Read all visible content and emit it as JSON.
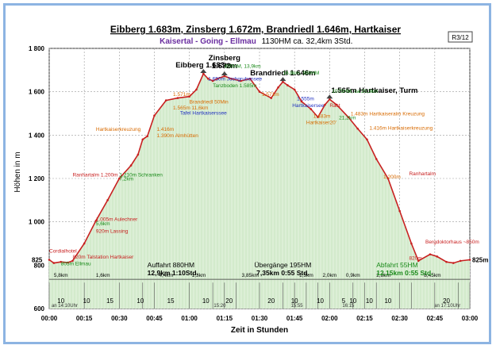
{
  "header": {
    "title": "Eibberg 1.683m, Zinsberg 1.672m, Brandriedl 1.646m, Hartkaiser",
    "subtitle_route": "Kaisertal - Going - Ellmau",
    "subtitle_stats": "1130HM    ca. 32,4km    3Std.",
    "page_label": "R3/12"
  },
  "colors": {
    "profile": "#c82020",
    "fill": "#dcefd6",
    "title_route": "#6a2ea0",
    "label_orange": "#d86a00",
    "label_blue": "#2030c0",
    "label_red": "#c82020",
    "label_green": "#1a8a1a",
    "grid": "#9a9a9a"
  },
  "chart_data": {
    "type": "area",
    "xlabel": "Zeit in Stunden",
    "ylabel": "Höhen in m",
    "xlim": [
      0,
      180
    ],
    "ylim": [
      600,
      1800
    ],
    "y_ticks": [
      600,
      800,
      1000,
      1200,
      1400,
      1600,
      1800
    ],
    "y_tick_labels": [
      "600",
      "800",
      "1 000",
      "1 200",
      "1 400",
      "1 600",
      "1 800"
    ],
    "x_ticks": [
      0,
      15,
      30,
      45,
      60,
      75,
      90,
      105,
      120,
      135,
      150,
      165,
      180
    ],
    "x_tick_labels": [
      "00:00",
      "00:15",
      "00:30",
      "00:45",
      "01:00",
      "01:15",
      "01:30",
      "01:45",
      "02:00",
      "02:15",
      "02:30",
      "02:45",
      "03:00"
    ],
    "extra_y_labels": [
      {
        "value": 825,
        "text": "825"
      }
    ],
    "right_end_label": "825m",
    "series": [
      {
        "name": "profile",
        "points": [
          [
            0,
            825
          ],
          [
            2,
            810
          ],
          [
            5,
            815
          ],
          [
            8,
            812
          ],
          [
            10,
            820
          ],
          [
            15,
            900
          ],
          [
            20,
            1005
          ],
          [
            25,
            1100
          ],
          [
            30,
            1200
          ],
          [
            35,
            1260
          ],
          [
            38,
            1310
          ],
          [
            40,
            1380
          ],
          [
            42,
            1395
          ],
          [
            45,
            1490
          ],
          [
            50,
            1560
          ],
          [
            55,
            1571
          ],
          [
            60,
            1578
          ],
          [
            63,
            1610
          ],
          [
            66,
            1683
          ],
          [
            68,
            1660
          ],
          [
            70,
            1650
          ],
          [
            72,
            1660
          ],
          [
            75,
            1672
          ],
          [
            78,
            1660
          ],
          [
            82,
            1650
          ],
          [
            86,
            1660
          ],
          [
            90,
            1600
          ],
          [
            95,
            1571
          ],
          [
            98,
            1620
          ],
          [
            100,
            1646
          ],
          [
            102,
            1630
          ],
          [
            105,
            1610
          ],
          [
            108,
            1555
          ],
          [
            112,
            1520
          ],
          [
            115,
            1483
          ],
          [
            118,
            1540
          ],
          [
            120,
            1565
          ],
          [
            123,
            1540
          ],
          [
            128,
            1483
          ],
          [
            132,
            1430
          ],
          [
            136,
            1380
          ],
          [
            140,
            1290
          ],
          [
            145,
            1200
          ],
          [
            150,
            1050
          ],
          [
            155,
            900
          ],
          [
            158,
            820
          ],
          [
            163,
            850
          ],
          [
            166,
            840
          ],
          [
            170,
            815
          ],
          [
            173,
            810
          ],
          [
            176,
            820
          ],
          [
            180,
            825
          ]
        ]
      }
    ],
    "interval_ticks": [
      0,
      15,
      30,
      40,
      45,
      60,
      70,
      75,
      80,
      90,
      100,
      105,
      110,
      115,
      120,
      130,
      135,
      140,
      150,
      155,
      165,
      175,
      180
    ],
    "interval_numbers": [
      {
        "x": 5,
        "text": "10"
      },
      {
        "x": 16,
        "text": "10"
      },
      {
        "x": 26,
        "text": "15"
      },
      {
        "x": 39,
        "text": "10"
      },
      {
        "x": 52,
        "text": "15"
      },
      {
        "x": 67,
        "text": "10"
      },
      {
        "x": 77,
        "text": "20"
      },
      {
        "x": 95,
        "text": "20"
      },
      {
        "x": 105,
        "text": "10"
      },
      {
        "x": 116,
        "text": "10"
      },
      {
        "x": 126,
        "text": "5"
      },
      {
        "x": 130,
        "text": "10"
      },
      {
        "x": 137,
        "text": "10"
      },
      {
        "x": 145,
        "text": "10"
      },
      {
        "x": 170,
        "text": "20"
      }
    ],
    "distances": [
      {
        "x": 5,
        "text": "5,8km"
      },
      {
        "x": 23,
        "text": "1,6km"
      },
      {
        "x": 50,
        "text": "4,4km"
      },
      {
        "x": 64,
        "text": "1,3km"
      },
      {
        "x": 86,
        "text": "3,85km"
      },
      {
        "x": 110,
        "text": "1,5km"
      },
      {
        "x": 120,
        "text": "2,0km"
      },
      {
        "x": 130,
        "text": "0,9km"
      },
      {
        "x": 143,
        "text": "2,8km"
      },
      {
        "x": 164,
        "text": "8,45km"
      }
    ],
    "time_marks": [
      {
        "x": 1,
        "text": "an 14:10Uhr"
      },
      {
        "x": 73,
        "text": "15:20"
      },
      {
        "x": 106,
        "text": "15:55"
      },
      {
        "x": 128,
        "text": "16:15"
      },
      {
        "x": 176,
        "text": "an 17:10Uhr"
      }
    ],
    "peaks": [
      {
        "x": 66,
        "y": 1683,
        "label": "Eibberg 1.683m"
      },
      {
        "x": 75,
        "y": 1672,
        "label": "Zinsberg",
        "label2": "1.672m"
      },
      {
        "x": 100,
        "y": 1646,
        "label": "Brandriedl 1.646m"
      },
      {
        "x": 120,
        "y": 1565,
        "label": "1.565m Hartkaiser, Turm"
      }
    ],
    "annotations": [
      {
        "x": 0,
        "y": 858,
        "text": "Cordialhotel",
        "color": "label_red"
      },
      {
        "x": 10,
        "y": 830,
        "text": "820m",
        "color": "label_red",
        "sub": " Talstation Hartkaiser"
      },
      {
        "x": 5,
        "y": 800,
        "text": "805m Ellmau",
        "color": "label_green"
      },
      {
        "x": 20,
        "y": 1005,
        "text": "1.005m Aulechner",
        "color": "label_red"
      },
      {
        "x": 20,
        "y": 985,
        "text": "5,6km",
        "color": "label_green"
      },
      {
        "x": 20,
        "y": 950,
        "text": "920m Lassing",
        "color": "label_red"
      },
      {
        "x": 30,
        "y": 1210,
        "text": "1.210m Schranken",
        "color": "label_green"
      },
      {
        "x": 30,
        "y": 1190,
        "text": "7,2km",
        "color": "label_green"
      },
      {
        "x": 10,
        "y": 1210,
        "text": "Ranhartalm 1.200m",
        "color": "label_red"
      },
      {
        "x": 20,
        "y": 1420,
        "text": "Hartkaiserkreuzung",
        "color": "label_orange"
      },
      {
        "x": 46,
        "y": 1420,
        "text": "1.416m",
        "color": "label_orange"
      },
      {
        "x": 46,
        "y": 1390,
        "text": "1.390m Almhütten",
        "color": "label_orange"
      },
      {
        "x": 53,
        "y": 1580,
        "text": "1.571m",
        "color": "label_orange"
      },
      {
        "x": 53,
        "y": 1518,
        "text": "1.565m",
        "color": "label_orange",
        "sub": " 11,6km"
      },
      {
        "x": 56,
        "y": 1495,
        "text": "Tafel Hartkaiserssee",
        "color": "label_blue"
      },
      {
        "x": 60,
        "y": 1545,
        "text": "Brandriedl 50Min",
        "color": "label_orange"
      },
      {
        "x": 68,
        "y": 1652,
        "text": "1.650m Jochgrubensee",
        "color": "label_blue"
      },
      {
        "x": 75,
        "y": 1710,
        "text": "800HM, 13,9km",
        "color": "label_green"
      },
      {
        "x": 70,
        "y": 1620,
        "text": "Tanzboden 1.585m",
        "color": "label_green"
      },
      {
        "x": 91,
        "y": 1580,
        "text": "1.571m",
        "color": "label_orange"
      },
      {
        "x": 100,
        "y": 1680,
        "text": "16,8km, 990HM",
        "color": "label_green"
      },
      {
        "x": 106,
        "y": 1560,
        "text": "1.555m",
        "color": "label_blue"
      },
      {
        "x": 104,
        "y": 1530,
        "text": "Hartkaisersee",
        "color": "label_blue"
      },
      {
        "x": 121,
        "y": 1595,
        "text": "1075HM, ca 20,3km",
        "color": "label_green"
      },
      {
        "x": 120,
        "y": 1530,
        "text": "Rast",
        "color": "label_red"
      },
      {
        "x": 113,
        "y": 1480,
        "text": "1.483m",
        "color": "label_orange"
      },
      {
        "x": 110,
        "y": 1450,
        "text": "Hartkaiser20'",
        "color": "label_orange"
      },
      {
        "x": 124,
        "y": 1473,
        "text": "21,2km",
        "color": "label_green"
      },
      {
        "x": 129,
        "y": 1490,
        "text": "1.483m",
        "color": "label_orange",
        "sub": " Hartkaiseralm Kreuzung"
      },
      {
        "x": 137,
        "y": 1425,
        "text": "1.416m",
        "color": "label_orange",
        "sub": " Hartkaiserkreuzung"
      },
      {
        "x": 143,
        "y": 1200,
        "text": "1.200m",
        "color": "label_orange"
      },
      {
        "x": 154,
        "y": 1215,
        "text": "Ranhartalm",
        "color": "label_red"
      },
      {
        "x": 161,
        "y": 900,
        "text": "Bergdoktorhaus ~850m",
        "color": "label_red"
      },
      {
        "x": 154,
        "y": 825,
        "text": "820m",
        "color": "label_red"
      }
    ],
    "boxes": [
      {
        "x": 42,
        "y": 790,
        "lines": [
          "Auffahrt  880HM",
          "12,9km    1:10Std."
        ],
        "color": "label_black"
      },
      {
        "x": 100,
        "y": 790,
        "lines": [
          "Übergänge 195HM",
          "7,35km    0:55 Std."
        ],
        "color": "label_black"
      },
      {
        "x": 140,
        "y": 790,
        "lines": [
          "Abfahrt 55HM",
          "12,15km   0:55 Std."
        ],
        "color": "label_green"
      }
    ]
  }
}
